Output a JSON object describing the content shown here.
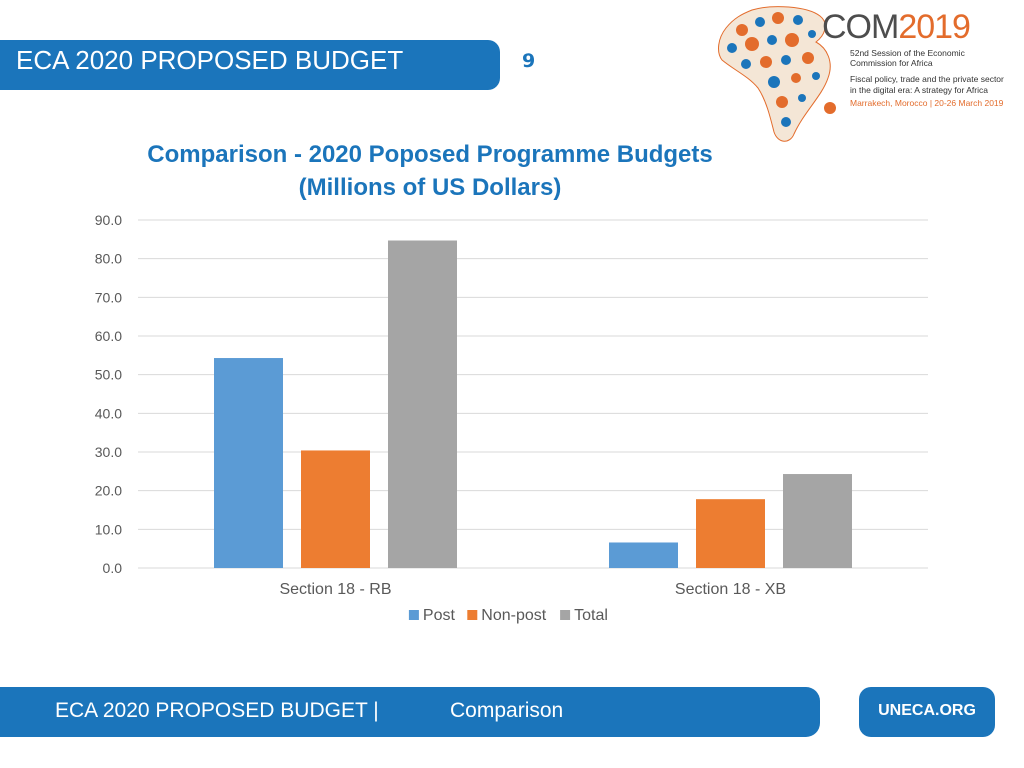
{
  "header": {
    "title": "ECA 2020 PROPOSED BUDGET",
    "page_number": "9"
  },
  "logo": {
    "brand_prefix": "COM",
    "brand_year": "2019",
    "line1": "52nd Session of the Economic",
    "line2": "Commission for Africa",
    "line3": "Fiscal policy, trade and the private sector",
    "line4": "in the digital era: A strategy for Africa",
    "line5": "Marrakech, Morocco | 20-26 March 2019"
  },
  "chart_data": {
    "type": "bar",
    "title_line1": "Comparison - 2020 Poposed Programme Budgets",
    "title_line2": "(Millions of US Dollars)",
    "categories": [
      "Section 18 - RB",
      "Section 18 - XB"
    ],
    "series": [
      {
        "name": "Post",
        "values": [
          54.3,
          6.6
        ],
        "color": "#5b9bd5"
      },
      {
        "name": "Non-post",
        "values": [
          30.4,
          17.8
        ],
        "color": "#ed7d31"
      },
      {
        "name": "Total",
        "values": [
          84.7,
          24.3
        ],
        "color": "#a5a5a5"
      }
    ],
    "ylim": [
      0,
      90
    ],
    "yticks": [
      "0.0",
      "10.0",
      "20.0",
      "30.0",
      "40.0",
      "50.0",
      "60.0",
      "70.0",
      "80.0",
      "90.0"
    ],
    "legend_position": "bottom",
    "grid": true
  },
  "footer": {
    "title": "ECA 2020 PROPOSED BUDGET |",
    "section": "Comparison",
    "link": "UNECA.ORG"
  },
  "colors": {
    "brand_blue": "#1b75bb",
    "accent_orange": "#e36c2c"
  }
}
